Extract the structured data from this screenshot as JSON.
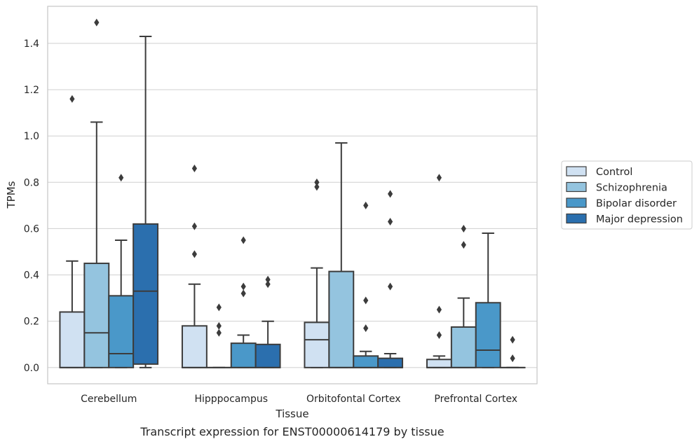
{
  "chart_data": {
    "type": "box",
    "xlabel": "Tissue",
    "ylabel": "TPMs",
    "caption": "Transcript expression for ENST00000614179 by tissue",
    "ylim": [
      -0.07,
      1.56
    ],
    "yticks": [
      "0.0",
      "0.2",
      "0.4",
      "0.6",
      "0.8",
      "1.0",
      "1.2",
      "1.4"
    ],
    "yticks_values": [
      0.0,
      0.2,
      0.4,
      0.6,
      0.8,
      1.0,
      1.2,
      1.4
    ],
    "grid": "horizontal",
    "legend_position": "right",
    "categories": [
      "Cerebellum",
      "Hipppocampus",
      "Orbitofontal Cortex",
      "Prefrontal Cortex"
    ],
    "series": [
      {
        "name": "Control",
        "color": "#d0e1f2",
        "boxes": [
          {
            "whisker_low": 0.0,
            "q1": 0.0,
            "median": 0.0,
            "q3": 0.24,
            "whisker_high": 0.46,
            "outliers": [
              1.16
            ]
          },
          {
            "whisker_low": 0.0,
            "q1": 0.0,
            "median": 0.0,
            "q3": 0.18,
            "whisker_high": 0.36,
            "outliers": [
              0.49,
              0.61,
              0.86
            ]
          },
          {
            "whisker_low": 0.0,
            "q1": 0.0,
            "median": 0.12,
            "q3": 0.195,
            "whisker_high": 0.43,
            "outliers": [
              0.78,
              0.8
            ]
          },
          {
            "whisker_low": 0.0,
            "q1": 0.0,
            "median": 0.0,
            "q3": 0.035,
            "whisker_high": 0.05,
            "outliers": [
              0.14,
              0.25,
              0.82
            ]
          }
        ]
      },
      {
        "name": "Schizophrenia",
        "color": "#94c4df",
        "boxes": [
          {
            "whisker_low": 0.0,
            "q1": 0.0,
            "median": 0.15,
            "q3": 0.45,
            "whisker_high": 1.06,
            "outliers": [
              1.49
            ]
          },
          {
            "whisker_low": 0.0,
            "q1": 0.0,
            "median": 0.0,
            "q3": 0.0,
            "whisker_high": 0.0,
            "outliers": [
              0.15,
              0.18,
              0.26
            ]
          },
          {
            "whisker_low": 0.0,
            "q1": 0.0,
            "median": 0.0,
            "q3": 0.415,
            "whisker_high": 0.97,
            "outliers": []
          },
          {
            "whisker_low": 0.0,
            "q1": 0.0,
            "median": 0.0,
            "q3": 0.175,
            "whisker_high": 0.3,
            "outliers": [
              0.53,
              0.6
            ]
          }
        ]
      },
      {
        "name": "Bipolar disorder",
        "color": "#4a98c9",
        "boxes": [
          {
            "whisker_low": 0.0,
            "q1": 0.0,
            "median": 0.06,
            "q3": 0.31,
            "whisker_high": 0.55,
            "outliers": [
              0.82
            ]
          },
          {
            "whisker_low": 0.0,
            "q1": 0.0,
            "median": 0.0,
            "q3": 0.105,
            "whisker_high": 0.14,
            "outliers": [
              0.32,
              0.35,
              0.55
            ]
          },
          {
            "whisker_low": 0.0,
            "q1": 0.0,
            "median": 0.0,
            "q3": 0.05,
            "whisker_high": 0.07,
            "outliers": [
              0.17,
              0.29,
              0.7
            ]
          },
          {
            "whisker_low": 0.0,
            "q1": 0.0,
            "median": 0.075,
            "q3": 0.28,
            "whisker_high": 0.58,
            "outliers": []
          }
        ]
      },
      {
        "name": "Major depression",
        "color": "#2b6fae",
        "boxes": [
          {
            "whisker_low": 0.0,
            "q1": 0.015,
            "median": 0.33,
            "q3": 0.62,
            "whisker_high": 1.43,
            "outliers": []
          },
          {
            "whisker_low": 0.0,
            "q1": 0.0,
            "median": 0.0,
            "q3": 0.1,
            "whisker_high": 0.2,
            "outliers": [
              0.36,
              0.38
            ]
          },
          {
            "whisker_low": 0.0,
            "q1": 0.0,
            "median": 0.0,
            "q3": 0.04,
            "whisker_high": 0.06,
            "outliers": [
              0.35,
              0.63,
              0.75
            ]
          },
          {
            "whisker_low": 0.0,
            "q1": 0.0,
            "median": 0.0,
            "q3": 0.0,
            "whisker_high": 0.0,
            "outliers": [
              0.04,
              0.12
            ]
          }
        ]
      }
    ]
  }
}
